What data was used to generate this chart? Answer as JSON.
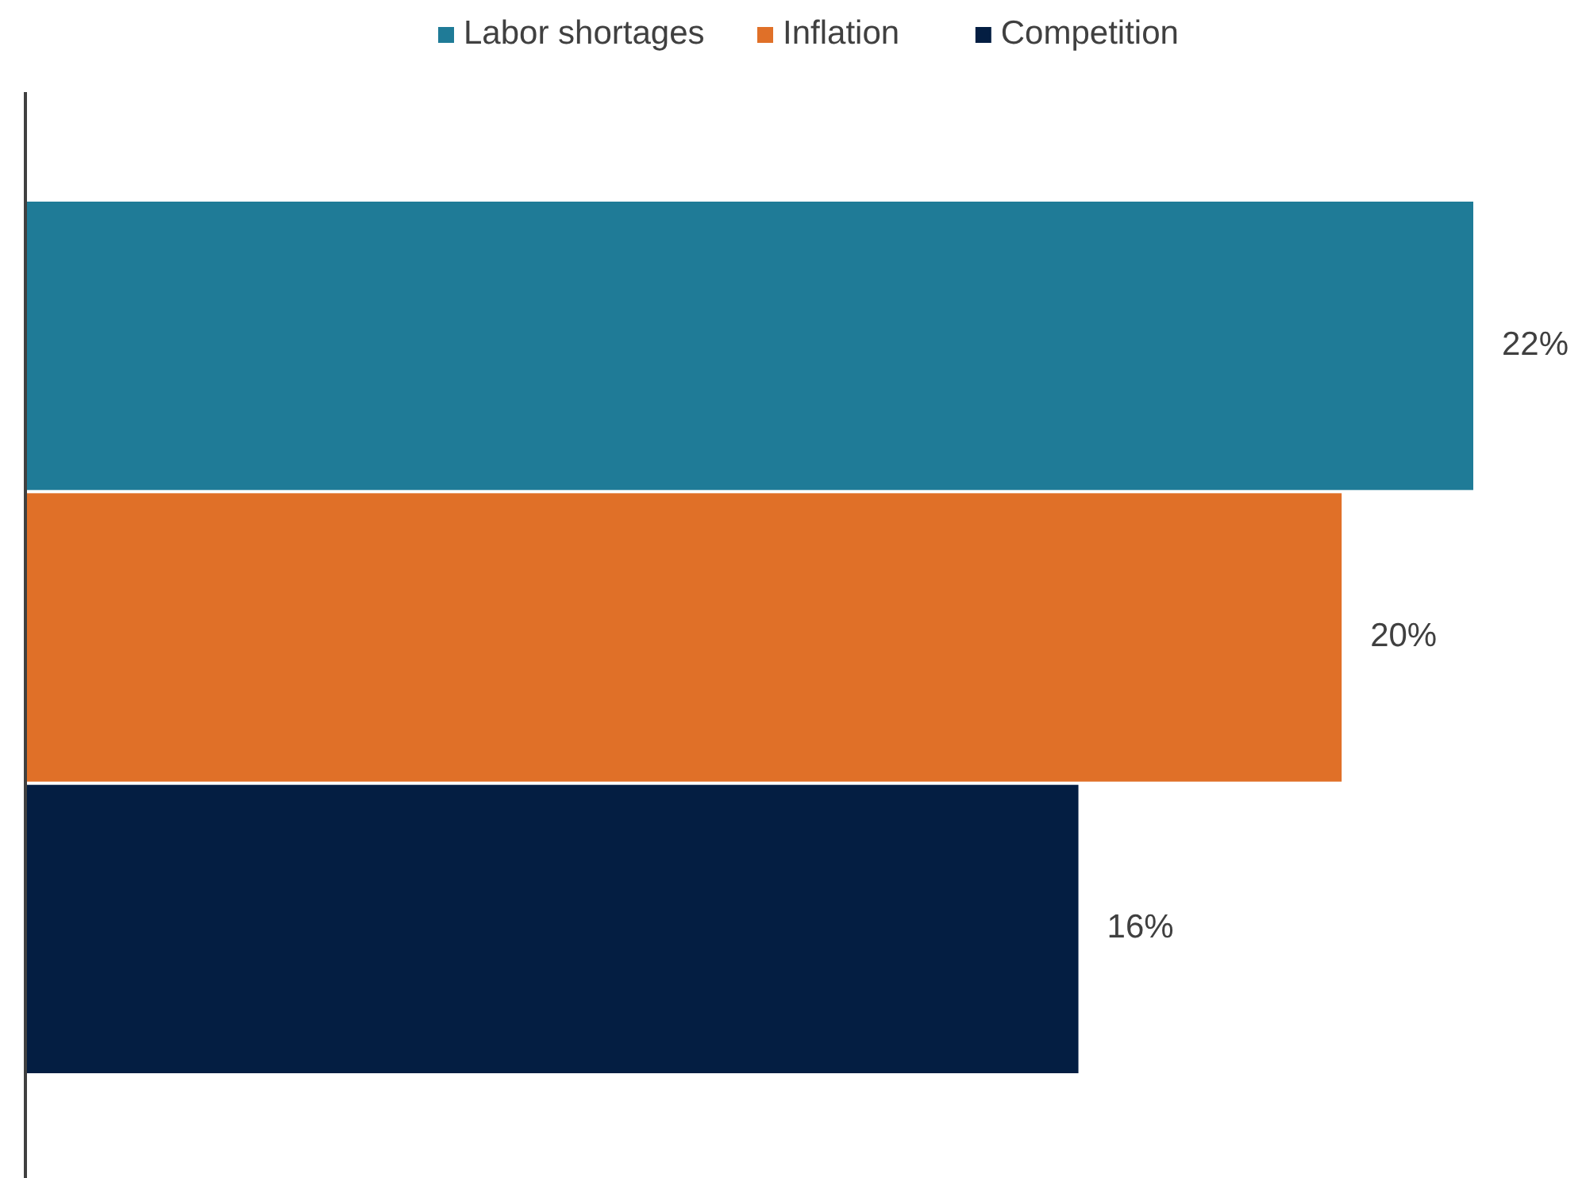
{
  "chart_data": {
    "type": "bar",
    "orientation": "horizontal",
    "categories": [
      null
    ],
    "series": [
      {
        "name": "Labor shortages",
        "color": "#1f7b97",
        "values": [
          22
        ],
        "value_labels": [
          "22%"
        ]
      },
      {
        "name": "Inflation",
        "color": "#e07028",
        "values": [
          20
        ],
        "value_labels": [
          "20%"
        ]
      },
      {
        "name": "Competition",
        "color": "#041e42",
        "values": [
          16
        ],
        "value_labels": [
          "16%"
        ]
      }
    ],
    "legend": "top"
  }
}
